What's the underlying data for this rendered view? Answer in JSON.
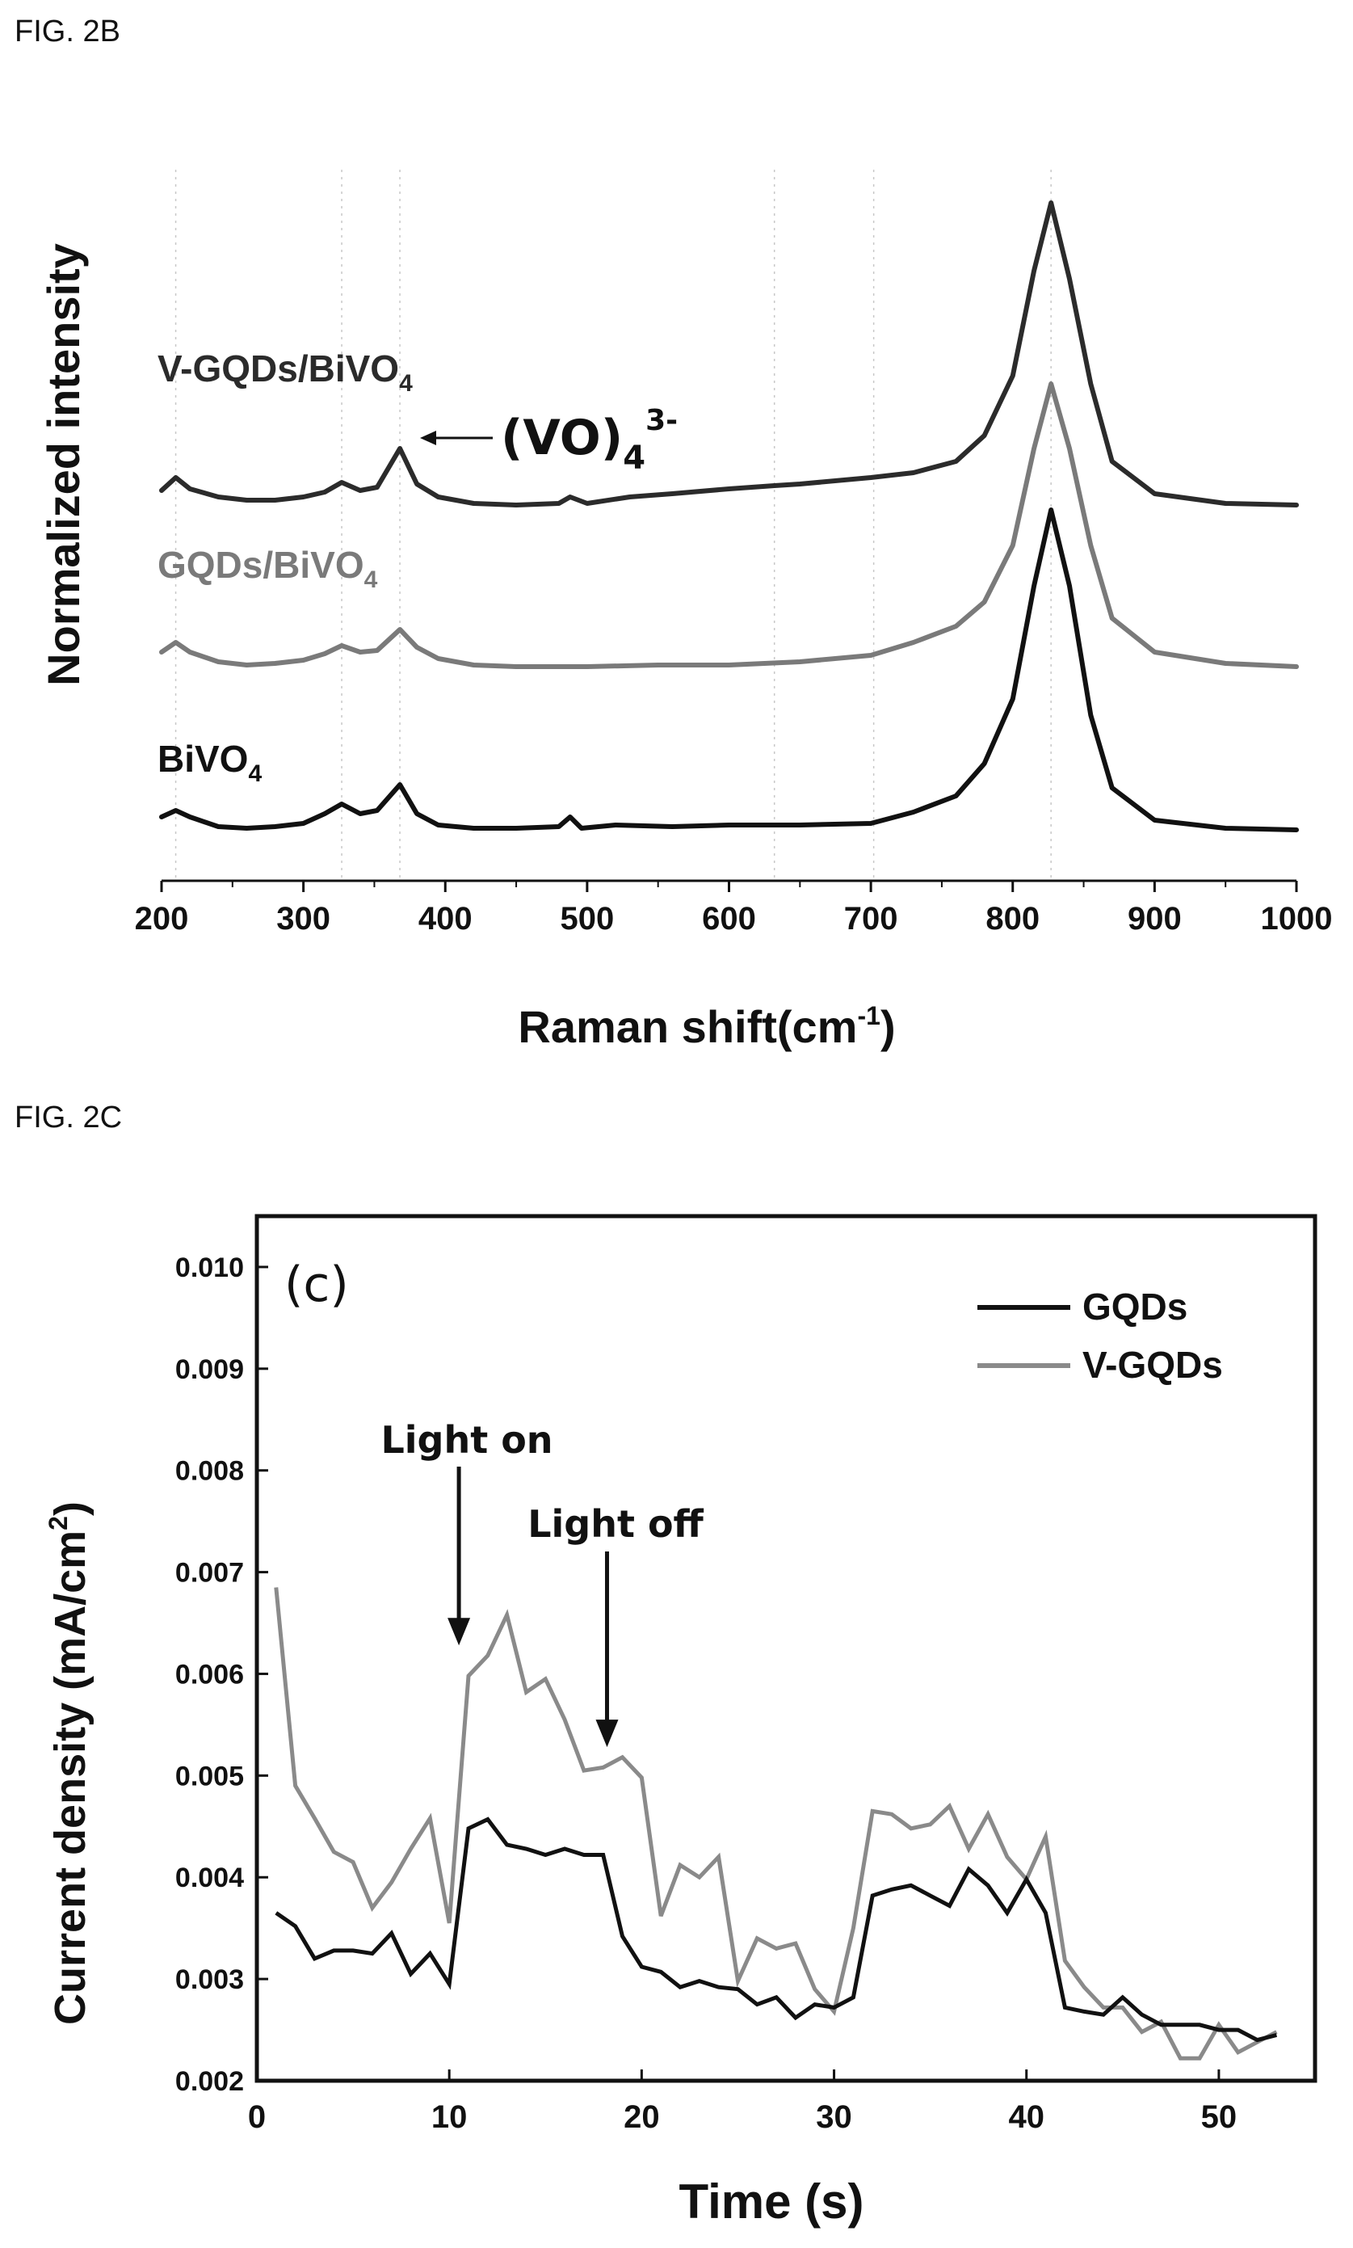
{
  "figures": {
    "fig2b_label": "FIG. 2B",
    "fig2c_label": "FIG. 2C"
  },
  "colors": {
    "black": "#111111",
    "dark": "#2b2b2b",
    "gray": "#7a7a7a",
    "light_gray": "#8a8a8a"
  },
  "chart_data": [
    {
      "type": "line",
      "xlabel": "Raman shift(cm",
      "xlabel_sup": "-1",
      "xlabel_end": ")",
      "ylabel": "Normalized intensity",
      "xlim": [
        200,
        1000
      ],
      "x_ticks": [
        200,
        300,
        400,
        500,
        600,
        700,
        800,
        900,
        1000
      ],
      "y_ticks_shown": false,
      "reference_lines_x": [
        210,
        327,
        368,
        632,
        702,
        827
      ],
      "annotation": {
        "text": "(VO)",
        "sub": "4",
        "sup": "3-",
        "x": 368
      },
      "series": [
        {
          "name": "V-GQDs/BiVO",
          "name_sub": "4",
          "offset": 2.0,
          "color": "#2b2b2b",
          "x": [
            200,
            210,
            220,
            240,
            260,
            280,
            300,
            315,
            327,
            340,
            352,
            368,
            380,
            395,
            420,
            450,
            480,
            488,
            500,
            530,
            560,
            600,
            632,
            650,
            700,
            730,
            760,
            780,
            800,
            815,
            827,
            840,
            855,
            870,
            900,
            950,
            1000
          ],
          "y": [
            0.14,
            0.22,
            0.15,
            0.1,
            0.08,
            0.08,
            0.1,
            0.13,
            0.19,
            0.14,
            0.16,
            0.4,
            0.18,
            0.1,
            0.06,
            0.05,
            0.06,
            0.1,
            0.06,
            0.1,
            0.12,
            0.15,
            0.17,
            0.18,
            0.22,
            0.25,
            0.32,
            0.48,
            0.85,
            1.5,
            1.92,
            1.45,
            0.8,
            0.32,
            0.12,
            0.06,
            0.05
          ]
        },
        {
          "name": "GQDs/BiVO",
          "name_sub": "4",
          "offset": 1.0,
          "color": "#7a7a7a",
          "x": [
            200,
            210,
            220,
            240,
            260,
            280,
            300,
            315,
            327,
            340,
            352,
            368,
            380,
            395,
            420,
            450,
            480,
            500,
            550,
            600,
            650,
            700,
            730,
            760,
            780,
            800,
            815,
            827,
            840,
            855,
            870,
            900,
            950,
            1000
          ],
          "y": [
            0.14,
            0.2,
            0.14,
            0.08,
            0.06,
            0.07,
            0.09,
            0.13,
            0.18,
            0.14,
            0.15,
            0.28,
            0.17,
            0.1,
            0.06,
            0.05,
            0.05,
            0.05,
            0.06,
            0.06,
            0.08,
            0.12,
            0.2,
            0.3,
            0.45,
            0.8,
            1.4,
            1.8,
            1.4,
            0.8,
            0.35,
            0.14,
            0.07,
            0.05
          ]
        },
        {
          "name": "BiVO",
          "name_sub": "4",
          "offset": 0.0,
          "color": "#111111",
          "x": [
            200,
            210,
            220,
            240,
            260,
            280,
            300,
            315,
            327,
            340,
            352,
            368,
            380,
            395,
            420,
            450,
            480,
            488,
            496,
            520,
            560,
            600,
            632,
            650,
            700,
            730,
            760,
            780,
            800,
            815,
            827,
            840,
            855,
            870,
            900,
            950,
            1000
          ],
          "y": [
            0.12,
            0.16,
            0.12,
            0.06,
            0.05,
            0.06,
            0.08,
            0.14,
            0.2,
            0.14,
            0.16,
            0.32,
            0.14,
            0.07,
            0.05,
            0.05,
            0.06,
            0.12,
            0.05,
            0.07,
            0.06,
            0.07,
            0.07,
            0.07,
            0.08,
            0.15,
            0.25,
            0.45,
            0.85,
            1.55,
            2.02,
            1.55,
            0.75,
            0.3,
            0.1,
            0.05,
            0.04
          ]
        }
      ]
    },
    {
      "type": "line",
      "inset_text": "(c)",
      "xlabel": "Time (s)",
      "ylabel": "Current density (mA/cm",
      "ylabel_sup": "2",
      "ylabel_end": ")",
      "xlim": [
        0,
        55
      ],
      "ylim": [
        0.002,
        0.0105
      ],
      "x_ticks": [
        0,
        10,
        20,
        30,
        40,
        50
      ],
      "y_ticks": [
        "0.002",
        "0.003",
        "0.004",
        "0.005",
        "0.006",
        "0.007",
        "0.008",
        "0.009",
        "0.010"
      ],
      "legend_position": "top-right",
      "annotations": [
        {
          "text": "Light on",
          "x": 10.5,
          "y_tip": 0.00628
        },
        {
          "text": "Light off",
          "x": 18.2,
          "y_tip": 0.00528
        }
      ],
      "series": [
        {
          "name": "GQDs",
          "color": "#111111",
          "x": [
            1,
            2,
            3,
            4,
            5,
            6,
            7,
            8,
            9,
            10,
            11,
            12,
            13,
            14,
            15,
            16,
            17,
            18,
            19,
            20,
            21,
            22,
            23,
            24,
            25,
            26,
            27,
            28,
            29,
            30,
            31,
            32,
            33,
            34,
            35,
            36,
            37,
            38,
            39,
            40,
            41,
            42,
            43,
            44,
            45,
            46,
            47,
            48,
            49,
            50,
            51,
            52,
            53
          ],
          "y": [
            0.00365,
            0.00352,
            0.0032,
            0.00328,
            0.00328,
            0.00325,
            0.00345,
            0.00305,
            0.00325,
            0.00295,
            0.00448,
            0.00457,
            0.00432,
            0.00428,
            0.00422,
            0.00428,
            0.00422,
            0.00422,
            0.00342,
            0.00312,
            0.00307,
            0.00292,
            0.00298,
            0.00292,
            0.0029,
            0.00275,
            0.00282,
            0.00262,
            0.00275,
            0.00272,
            0.00282,
            0.00382,
            0.00388,
            0.00392,
            0.00382,
            0.00372,
            0.00408,
            0.00392,
            0.00365,
            0.00398,
            0.00365,
            0.00272,
            0.00268,
            0.00265,
            0.00282,
            0.00265,
            0.00255,
            0.00255,
            0.00255,
            0.0025,
            0.0025,
            0.0024,
            0.00245
          ]
        },
        {
          "name": "V-GQDs",
          "color": "#8a8a8a",
          "x": [
            1,
            2,
            3,
            4,
            5,
            6,
            7,
            8,
            9,
            10,
            11,
            12,
            13,
            14,
            15,
            16,
            17,
            18,
            19,
            20,
            21,
            22,
            23,
            24,
            25,
            26,
            27,
            28,
            29,
            30,
            31,
            32,
            33,
            34,
            35,
            36,
            37,
            38,
            39,
            40,
            41,
            42,
            43,
            44,
            45,
            46,
            47,
            48,
            49,
            50,
            51,
            52,
            53
          ],
          "y": [
            0.00685,
            0.0049,
            0.00458,
            0.00425,
            0.00415,
            0.0037,
            0.00395,
            0.00428,
            0.00458,
            0.00355,
            0.00598,
            0.00618,
            0.00658,
            0.00582,
            0.00595,
            0.00555,
            0.00505,
            0.00508,
            0.00518,
            0.00498,
            0.00362,
            0.00412,
            0.004,
            0.0042,
            0.00298,
            0.0034,
            0.0033,
            0.00335,
            0.0029,
            0.00268,
            0.0035,
            0.00465,
            0.00462,
            0.00448,
            0.00452,
            0.0047,
            0.00428,
            0.00462,
            0.0042,
            0.00398,
            0.0044,
            0.00318,
            0.00292,
            0.00272,
            0.00272,
            0.00248,
            0.00258,
            0.00222,
            0.00222,
            0.00255,
            0.00228,
            0.00238,
            0.00248
          ]
        }
      ]
    }
  ]
}
